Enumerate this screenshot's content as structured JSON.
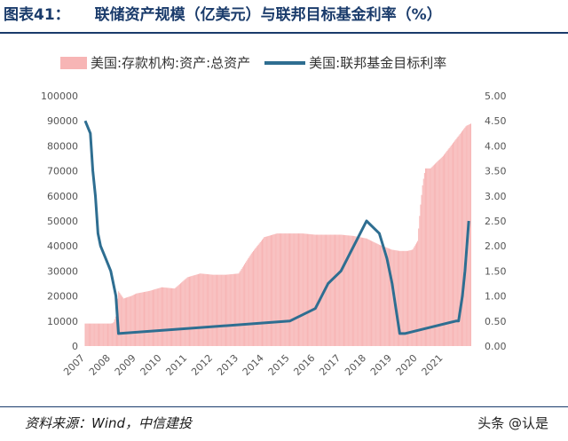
{
  "header": {
    "figure_no": "图表41：",
    "title": "联储资产规模（亿美元）与联邦目标基金利率（%）"
  },
  "footer": {
    "source": "资料来源：Wind，中信建投",
    "watermark": "头条 @认是"
  },
  "colors": {
    "bar": "#f7b5b5",
    "line": "#2e6e91",
    "title": "#1a3b6b"
  },
  "chart_data": {
    "type": "bar+line",
    "x_tick_labels": [
      "2007",
      "2008",
      "2009",
      "2010",
      "2011",
      "2012",
      "2013",
      "2014",
      "2015",
      "2016",
      "2017",
      "2018",
      "2019",
      "2020",
      "2021"
    ],
    "xlim": [
      2007.0,
      2022.2
    ],
    "y_left": {
      "ticks": [
        "0",
        "10000",
        "20000",
        "30000",
        "40000",
        "50000",
        "60000",
        "70000",
        "80000",
        "90000",
        "100000"
      ],
      "lim": [
        0,
        100000
      ]
    },
    "y_right": {
      "ticks": [
        "0.00",
        "0.50",
        "1.00",
        "1.50",
        "2.00",
        "2.50",
        "3.00",
        "3.50",
        "4.00",
        "4.50",
        "5.00"
      ],
      "lim": [
        0,
        5
      ]
    },
    "series": [
      {
        "name": "美国:存款机构:资产:总资产",
        "axis": "left",
        "type": "bar",
        "x": [
          2007.0,
          2007.5,
          2008.0,
          2008.1,
          2008.2,
          2008.3,
          2008.5,
          2008.8,
          2009.0,
          2009.5,
          2010.0,
          2010.5,
          2011.0,
          2011.5,
          2012.0,
          2012.5,
          2013.0,
          2013.5,
          2014.0,
          2014.5,
          2015.0,
          2015.5,
          2016.0,
          2016.5,
          2017.0,
          2017.5,
          2018.0,
          2018.5,
          2019.0,
          2019.3,
          2019.6,
          2019.8,
          2020.0,
          2020.1,
          2020.2,
          2020.3,
          2020.5,
          2020.8,
          2021.0,
          2021.3,
          2021.6,
          2021.9,
          2022.1
        ],
        "values": [
          9000,
          9000,
          9000,
          9200,
          12000,
          22000,
          19000,
          20000,
          21000,
          22000,
          23500,
          23000,
          27500,
          29000,
          28500,
          28500,
          29000,
          37000,
          43500,
          45000,
          45000,
          45000,
          44500,
          44500,
          44500,
          44000,
          43000,
          40500,
          38500,
          38000,
          38000,
          38500,
          42000,
          55000,
          65000,
          71000,
          71000,
          74000,
          76000,
          80000,
          84000,
          88000,
          89000
        ]
      },
      {
        "name": "美国:联邦基金目标利率",
        "axis": "right",
        "type": "line",
        "x": [
          2007.0,
          2007.2,
          2007.3,
          2007.4,
          2007.5,
          2007.6,
          2007.8,
          2008.0,
          2008.2,
          2008.3,
          2015.0,
          2016.0,
          2016.5,
          2017.0,
          2017.5,
          2018.0,
          2018.5,
          2018.8,
          2019.0,
          2019.3,
          2019.4,
          2019.5,
          2021.5,
          2021.6,
          2021.75,
          2021.85,
          2022.0
        ],
        "values": [
          4.5,
          4.25,
          3.5,
          3.0,
          2.25,
          2.0,
          1.75,
          1.5,
          1.0,
          0.25,
          0.5,
          0.75,
          1.25,
          1.5,
          2.0,
          2.5,
          2.25,
          1.75,
          1.25,
          0.25,
          0.25,
          0.25,
          0.5,
          0.5,
          1.0,
          1.5,
          2.5
        ]
      }
    ]
  }
}
